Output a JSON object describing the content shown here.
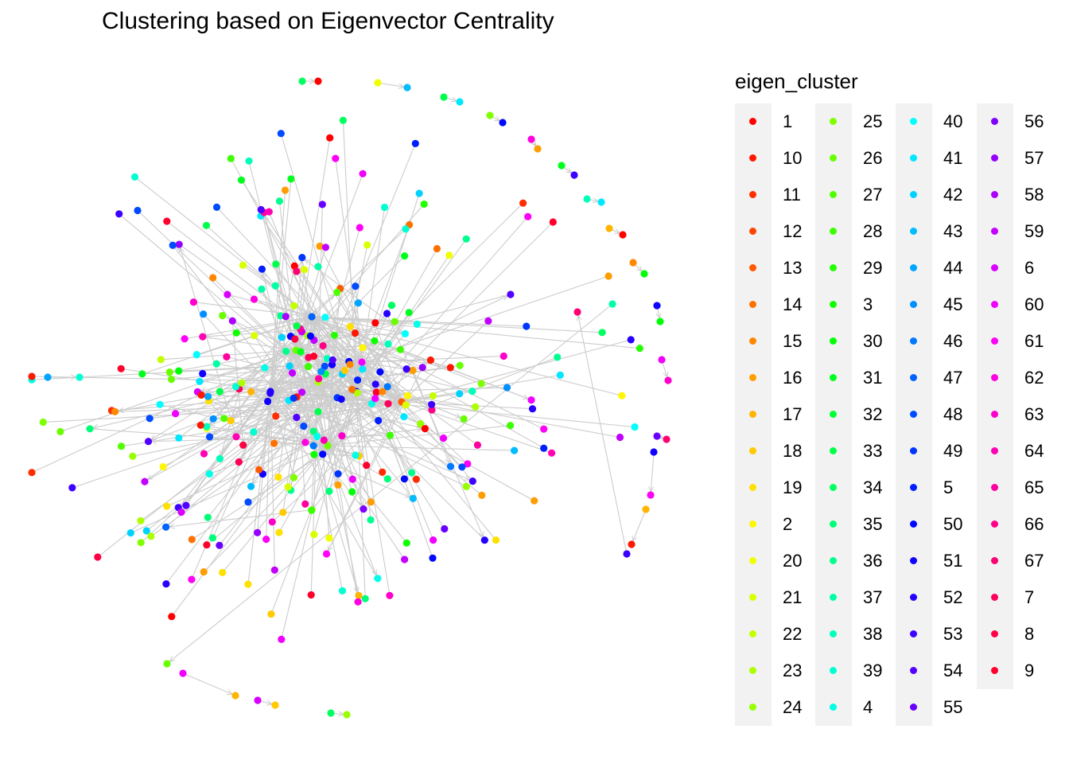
{
  "title": "Clustering based on Eigenvector Centrality",
  "legend": {
    "title": "eigen_cluster",
    "entries": [
      "1",
      "10",
      "11",
      "12",
      "13",
      "14",
      "15",
      "16",
      "17",
      "18",
      "19",
      "2",
      "20",
      "21",
      "22",
      "23",
      "24",
      "25",
      "26",
      "27",
      "28",
      "29",
      "3",
      "30",
      "31",
      "32",
      "33",
      "34",
      "35",
      "36",
      "37",
      "38",
      "39",
      "4",
      "40",
      "41",
      "42",
      "43",
      "44",
      "45",
      "46",
      "47",
      "48",
      "49",
      "5",
      "50",
      "51",
      "52",
      "53",
      "54",
      "55",
      "56",
      "57",
      "58",
      "59",
      "6",
      "60",
      "61",
      "62",
      "63",
      "64",
      "65",
      "66",
      "67",
      "7",
      "8",
      "9"
    ],
    "columns": 4,
    "per_column": 17
  },
  "palette": {
    "edge": "#cccccc",
    "background": "#ffffff",
    "legend_key_bg": "#f2f2f2"
  },
  "chart_data": {
    "type": "network",
    "directed": true,
    "color_scale": "rainbow over sorted cluster labels",
    "grid": false,
    "legend_position": "right",
    "cluster_count": 67
  }
}
